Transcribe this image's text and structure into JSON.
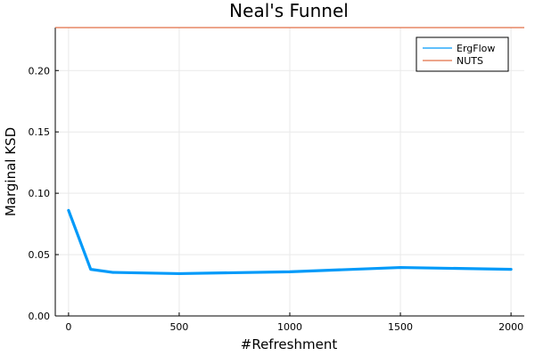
{
  "chart_data": {
    "type": "line",
    "title": "Neal's Funnel",
    "xlabel": "#Refreshment",
    "ylabel": "Marginal KSD",
    "xlim": [
      -60,
      2060
    ],
    "ylim": [
      0,
      0.235
    ],
    "x_ticks": [
      0,
      500,
      1000,
      1500,
      2000
    ],
    "x_tick_labels": [
      "0",
      "500",
      "1000",
      "1500",
      "2000"
    ],
    "y_ticks": [
      0,
      0.05,
      0.1,
      0.15,
      0.2
    ],
    "y_tick_labels": [
      "0.00",
      "0.05",
      "0.10",
      "0.15",
      "0.20"
    ],
    "grid": true,
    "legend_position": "top-right",
    "series": [
      {
        "name": "ErgFlow",
        "color": "#009af9",
        "style": "thick-line",
        "x": [
          0,
          100,
          200,
          500,
          1000,
          1500,
          2000
        ],
        "values": [
          0.086,
          0.038,
          0.0355,
          0.0345,
          0.036,
          0.0395,
          0.038
        ]
      },
      {
        "name": "NUTS",
        "color": "#e26f46",
        "style": "horizontal-line",
        "values": [
          0.235
        ]
      }
    ]
  }
}
